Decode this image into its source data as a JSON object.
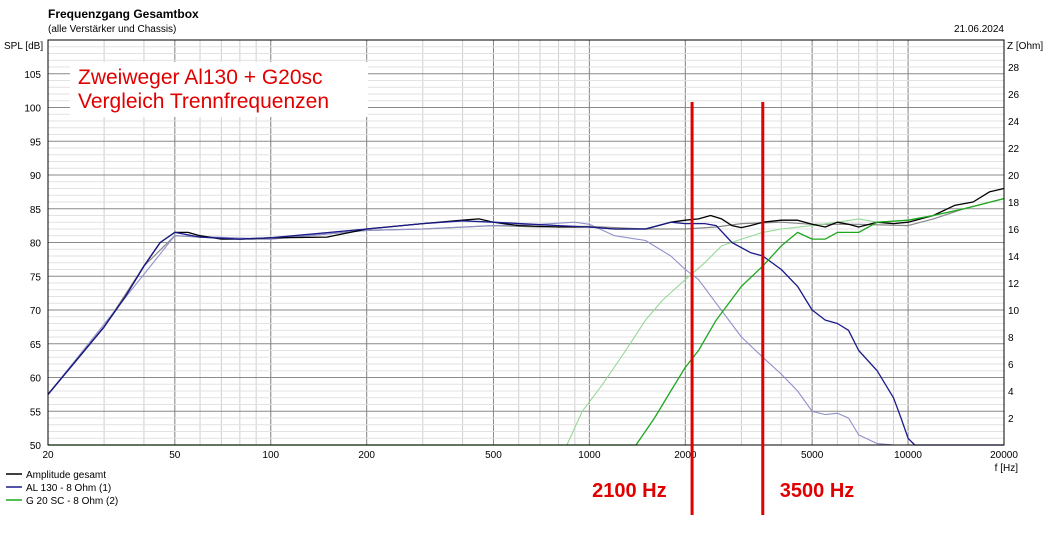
{
  "chart_data": {
    "type": "line",
    "title": "Frequenzgang Gesamtbox",
    "subtitle": "(alle Verstärker und Chassis)",
    "date": "21.06.2024",
    "annotation_lines": [
      "Zweiweger Al130 + G20sc",
      "Vergleich Trennfrequenzen"
    ],
    "ylabel": "SPL [dB]",
    "y2label": "Z [Ohm]",
    "xlabel": "f [Hz]",
    "x_scale": "log",
    "xlim": [
      20,
      20000
    ],
    "ylim": [
      50,
      110
    ],
    "y2lim": [
      0,
      30
    ],
    "x_ticks": [
      20,
      50,
      100,
      200,
      500,
      1000,
      2000,
      5000,
      10000,
      20000
    ],
    "x_tick_labels": [
      "20",
      "50",
      "100",
      "200",
      "500",
      "1000",
      "2000",
      "5000",
      "10000",
      "20000"
    ],
    "y_ticks": [
      50,
      55,
      60,
      65,
      70,
      75,
      80,
      85,
      90,
      95,
      100,
      105
    ],
    "y_tick_labels": [
      "50",
      "55",
      "60",
      "65",
      "70",
      "75",
      "80",
      "85",
      "90",
      "95",
      "100",
      "105"
    ],
    "y2_ticks": [
      2,
      4,
      6,
      8,
      10,
      12,
      14,
      16,
      18,
      20,
      22,
      24,
      26,
      28
    ],
    "y2_tick_labels": [
      "2",
      "4",
      "6",
      "8",
      "10",
      "12",
      "14",
      "16",
      "18",
      "20",
      "22",
      "24",
      "26",
      "28"
    ],
    "grid": true,
    "legend_position": "bottom-left",
    "markers": [
      {
        "x": 2100,
        "label": "2100 Hz",
        "color": "#e00000"
      },
      {
        "x": 3500,
        "label": "3500 Hz",
        "color": "#e00000"
      }
    ],
    "series": [
      {
        "name": "Amplitude gesamt",
        "color": "#000000",
        "width": 1.3,
        "x": [
          20,
          25,
          30,
          35,
          40,
          45,
          50,
          55,
          60,
          70,
          80,
          100,
          150,
          200,
          300,
          400,
          450,
          500,
          600,
          800,
          1000,
          1200,
          1500,
          1800,
          2000,
          2200,
          2400,
          2600,
          2800,
          3000,
          3200,
          3500,
          4000,
          4500,
          5000,
          5500,
          6000,
          6500,
          7000,
          8000,
          9000,
          10000,
          12000,
          14000,
          16000,
          18000,
          20000
        ],
        "y": [
          57.5,
          63,
          67.5,
          72,
          76.5,
          80,
          81.5,
          81.5,
          81,
          80.5,
          80.5,
          80.7,
          80.8,
          82,
          82.8,
          83.3,
          83.5,
          83,
          82.5,
          82.3,
          82.3,
          82,
          82,
          83,
          83.3,
          83.5,
          84,
          83.5,
          82.5,
          82.2,
          82.5,
          83,
          83.3,
          83.3,
          82.7,
          82.3,
          83,
          82.7,
          82.3,
          83,
          82.8,
          83,
          84,
          85.5,
          86,
          87.5,
          88
        ]
      },
      {
        "name": "",
        "color": "#888888",
        "width": 1.2,
        "x": [
          20,
          30,
          40,
          50,
          60,
          80,
          100,
          200,
          300,
          500,
          700,
          1000,
          1500,
          2000,
          2500,
          3000,
          4000,
          5000,
          7000,
          10000,
          12000,
          15000,
          20000
        ],
        "y": [
          57.5,
          67.5,
          76.5,
          81,
          80.8,
          80.5,
          80.5,
          81.8,
          82,
          82.5,
          82.3,
          82.4,
          82,
          82,
          82.3,
          82.8,
          83,
          82.7,
          82.7,
          82.5,
          83.5,
          85,
          86.5
        ]
      },
      {
        "name": "AL 130 - 8 Ohm (1)",
        "color": "#1a1a8c",
        "width": 1.3,
        "x": [
          20,
          25,
          30,
          35,
          40,
          45,
          50,
          60,
          80,
          100,
          200,
          300,
          400,
          500,
          800,
          1000,
          1200,
          1500,
          1800,
          2000,
          2300,
          2500,
          2800,
          3200,
          3500,
          4000,
          4500,
          5000,
          5500,
          6000,
          6500,
          7000,
          8000,
          9000,
          9500,
          10000,
          10500,
          12000,
          20000
        ],
        "y": [
          57.5,
          63,
          67.5,
          72,
          76.5,
          80,
          81.5,
          80.8,
          80.5,
          80.7,
          82,
          82.8,
          83.2,
          83,
          82.5,
          82.3,
          82,
          82,
          83,
          82.8,
          82.8,
          82.5,
          80,
          78.5,
          78,
          76,
          73.5,
          70,
          68.5,
          68,
          67,
          64,
          61,
          57,
          54,
          51,
          50,
          50,
          50
        ]
      },
      {
        "name": "",
        "color": "#9090cc",
        "width": 1.1,
        "x": [
          20,
          50,
          100,
          200,
          300,
          500,
          700,
          900,
          1000,
          1200,
          1500,
          1800,
          2000,
          2200,
          2500,
          3000,
          3500,
          4000,
          4500,
          5000,
          5500,
          6000,
          6500,
          7000,
          8000,
          9000,
          20000
        ],
        "y": [
          57.5,
          81,
          80.5,
          81.8,
          82,
          82.5,
          82.7,
          83,
          82.7,
          81,
          80.3,
          78,
          76,
          74.5,
          71,
          66,
          63,
          60.5,
          58,
          55,
          54.5,
          54.7,
          54,
          51.5,
          50.2,
          50,
          50
        ]
      },
      {
        "name": "G 20 SC - 8 Ohm (2)",
        "color": "#1ea81e",
        "width": 1.3,
        "x": [
          20,
          1000,
          1400,
          1600,
          1800,
          2000,
          2200,
          2500,
          3000,
          3500,
          4000,
          4500,
          5000,
          5500,
          6000,
          7000,
          8000,
          10000,
          12000,
          15000,
          20000
        ],
        "y": [
          50,
          50,
          50,
          54,
          58,
          61.5,
          64,
          68.5,
          73.5,
          76.5,
          79.5,
          81.5,
          80.5,
          80.5,
          81.5,
          81.5,
          83,
          83.3,
          84,
          85,
          86.5
        ]
      },
      {
        "name": "",
        "color": "#96d896",
        "width": 1.1,
        "x": [
          20,
          850,
          950,
          1100,
          1300,
          1500,
          1700,
          2000,
          2300,
          2600,
          3000,
          3500,
          4000,
          5000,
          6000,
          7000,
          8000,
          10000,
          12000,
          15000,
          20000
        ],
        "y": [
          50,
          50,
          55,
          59,
          64,
          68.5,
          71.5,
          74.5,
          77,
          79.5,
          80.5,
          81.5,
          82,
          82.5,
          83,
          83.5,
          83,
          83.3,
          84,
          85,
          86.5
        ]
      }
    ]
  }
}
